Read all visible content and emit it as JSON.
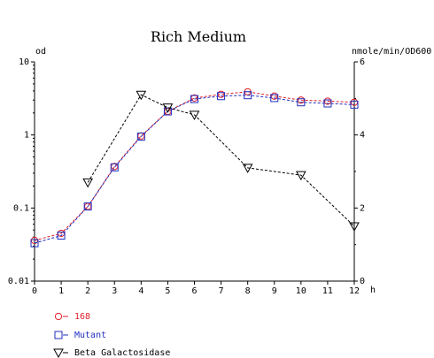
{
  "chart_data": {
    "type": "line",
    "title": "Rich Medium",
    "x_axis": {
      "unit_label": "h",
      "range": [
        0,
        12
      ],
      "ticks": [
        0,
        1,
        2,
        3,
        4,
        5,
        6,
        7,
        8,
        9,
        10,
        11,
        12
      ]
    },
    "y_left": {
      "label": "od",
      "scale": "log",
      "range": [
        0.01,
        10
      ],
      "ticks": [
        {
          "value": 0.01,
          "label": "0.01"
        },
        {
          "value": 0.1,
          "label": "0.1"
        },
        {
          "value": 1,
          "label": "1"
        },
        {
          "value": 10,
          "label": "10"
        }
      ]
    },
    "y_right": {
      "label": "nmole/min/OD600",
      "scale": "linear",
      "range": [
        0,
        6
      ],
      "ticks": [
        {
          "value": 0,
          "label": "0"
        },
        {
          "value": 2,
          "label": "2"
        },
        {
          "value": 4,
          "label": "4"
        },
        {
          "value": 6,
          "label": "6"
        }
      ]
    },
    "grid": false,
    "legend_position": "bottom-left",
    "series": [
      {
        "name": "168",
        "axis": "left",
        "marker": "circle",
        "color": "#e0202a",
        "points": [
          [
            0,
            0.036
          ],
          [
            1,
            0.045
          ],
          [
            2,
            0.105
          ],
          [
            3,
            0.37
          ],
          [
            4,
            0.97
          ],
          [
            5,
            2.1
          ],
          [
            6,
            3.2
          ],
          [
            7,
            3.6
          ],
          [
            8,
            3.9
          ],
          [
            9,
            3.4
          ],
          [
            10,
            3.0
          ],
          [
            11,
            2.9
          ],
          [
            12,
            2.8
          ]
        ]
      },
      {
        "name": "Mutant",
        "axis": "left",
        "marker": "square",
        "color": "#1f2fbf",
        "points": [
          [
            0,
            0.033
          ],
          [
            1,
            0.042
          ],
          [
            2,
            0.105
          ],
          [
            3,
            0.36
          ],
          [
            4,
            0.95
          ],
          [
            5,
            2.1
          ],
          [
            6,
            3.1
          ],
          [
            7,
            3.4
          ],
          [
            8,
            3.5
          ],
          [
            9,
            3.2
          ],
          [
            10,
            2.8
          ],
          [
            11,
            2.7
          ],
          [
            12,
            2.6
          ]
        ]
      },
      {
        "name": "Beta Galactosidase",
        "axis": "right",
        "marker": "triangle-down",
        "color": "#000000",
        "points": [
          [
            2,
            2.7
          ],
          [
            4,
            5.1
          ],
          [
            5,
            4.75
          ],
          [
            6,
            4.55
          ],
          [
            8,
            3.1
          ],
          [
            10,
            2.9
          ],
          [
            12,
            1.5
          ]
        ]
      }
    ]
  }
}
